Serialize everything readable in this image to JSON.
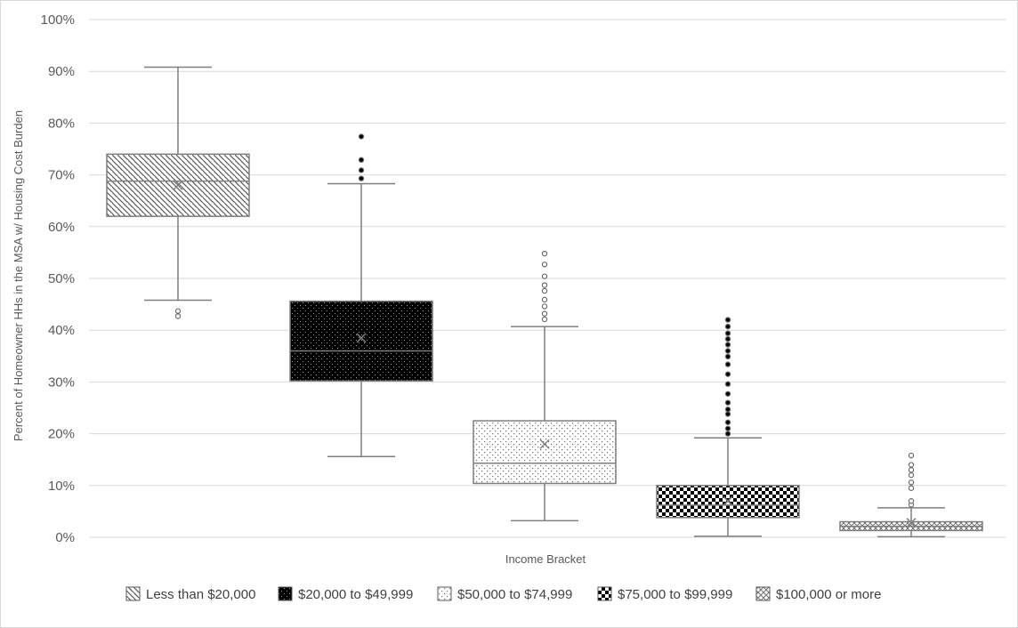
{
  "chart_data": {
    "type": "box",
    "xlabel": "Income Bracket",
    "ylabel": "Percent of Homeowner HHs in the MSA w/ Housing Cost Burden",
    "ylim": [
      0,
      100
    ],
    "yticks": [
      "0%",
      "10%",
      "20%",
      "30%",
      "40%",
      "50%",
      "60%",
      "70%",
      "80%",
      "90%",
      "100%"
    ],
    "grid": true,
    "legend_position": "bottom",
    "series": [
      {
        "name": "Less than $20,000",
        "pattern": "diagonal-lines",
        "q1": 62,
        "median": 68.8,
        "q3": 74,
        "whisker_low": 45.8,
        "whisker_high": 90.8,
        "mean": 68,
        "outliers": [
          42.7,
          43.7
        ],
        "fill": "#ffffff"
      },
      {
        "name": "$20,000 to $49,999",
        "pattern": "black-with-dots",
        "q1": 30.2,
        "median": 36,
        "q3": 45.6,
        "whisker_low": 15.6,
        "whisker_high": 68.3,
        "mean": 38.5,
        "outliers": [
          69.3,
          70.9,
          72.9,
          77.4
        ],
        "fill": "#000000"
      },
      {
        "name": "$50,000 to $74,999",
        "pattern": "light-dots",
        "q1": 10.4,
        "median": 14.3,
        "q3": 22.5,
        "whisker_low": 3.2,
        "whisker_high": 40.7,
        "mean": 18,
        "outliers": [
          42.1,
          43.2,
          44.6,
          45.9,
          47.6,
          48.7,
          50.4,
          52.7,
          54.8
        ],
        "fill": "#ffffff"
      },
      {
        "name": "$75,000 to $99,999",
        "pattern": "checkerboard",
        "q1": 3.8,
        "median": 6.2,
        "q3": 10,
        "whisker_low": 0.2,
        "whisker_high": 19.2,
        "mean": 7,
        "outliers": [
          20,
          21,
          22.2,
          23.8,
          24.7,
          26,
          27.7,
          29.6,
          31.5,
          33.4,
          34.9,
          36,
          37.2,
          38.3,
          39.4,
          40.7,
          42
        ],
        "fill": "#000000"
      },
      {
        "name": "$100,000 or more",
        "pattern": "diamond-grid",
        "q1": 1.3,
        "median": 2.1,
        "q3": 3,
        "whisker_low": 0.1,
        "whisker_high": 5.7,
        "mean": 2.8,
        "outliers": [
          6.3,
          7,
          9.5,
          10.6,
          12,
          13,
          14,
          15.8
        ],
        "fill": "#ffffff"
      }
    ]
  }
}
